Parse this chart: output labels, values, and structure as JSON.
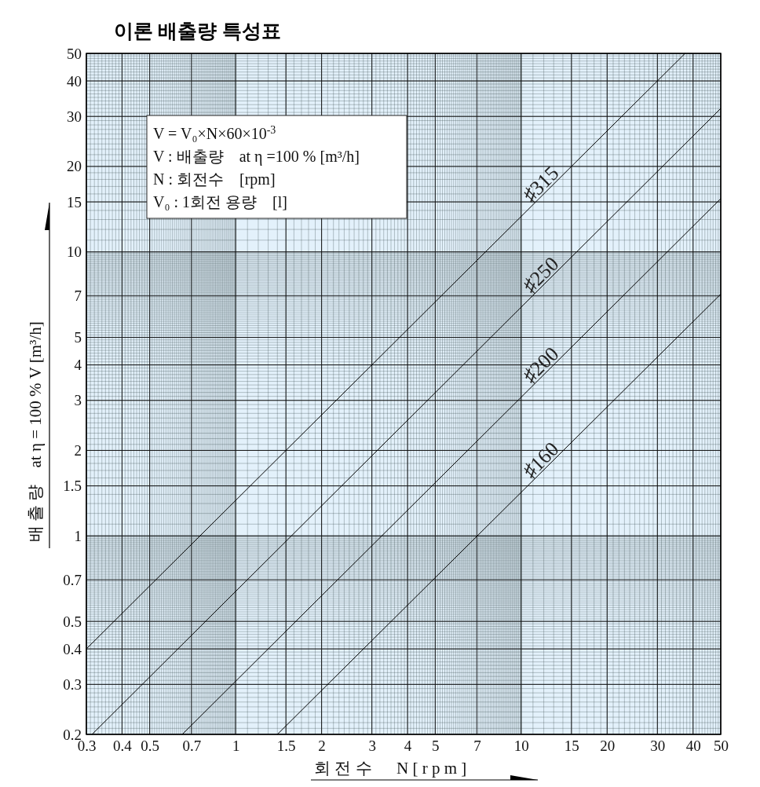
{
  "chart_data": {
    "type": "line",
    "title": "이론 배출량 특성표",
    "xlabel": "회 전 수      N [ r p m ]",
    "ylabel": "배 출 량    at η = 100 % V [m³/h]",
    "annotations": [
      "V = V₀×N×60×10$^{-3}$",
      "V : 배출량    at η =100 % [m³/h]",
      "N : 회전수    [rpm]",
      "V₀ : 1회전 용량    [l]"
    ],
    "log": "xy",
    "grid": true,
    "legend": false,
    "marker": "none",
    "line_style": "solid",
    "xlim": [
      0.3,
      50
    ],
    "ylim": [
      0.2,
      50
    ],
    "xticks": [
      0.3,
      0.4,
      0.5,
      0.7,
      1,
      1.5,
      2,
      3,
      4,
      5,
      7,
      10,
      15,
      20,
      30,
      40,
      50
    ],
    "yticks": [
      0.2,
      0.3,
      0.4,
      0.5,
      0.7,
      1,
      1.5,
      2,
      3,
      4,
      5,
      7,
      10,
      15,
      20,
      30,
      40,
      50
    ],
    "series": [
      {
        "name": "♯315",
        "color": "#000000",
        "x": [
          0.3,
          37.5
        ],
        "values": [
          0.4,
          50
        ]
      },
      {
        "name": "♯250",
        "color": "#000000",
        "x": [
          0.314,
          50
        ],
        "values": [
          0.2,
          32
        ]
      },
      {
        "name": "♯200",
        "color": "#000000",
        "x": [
          0.65,
          50
        ],
        "values": [
          0.2,
          15.4
        ]
      },
      {
        "name": "♯160",
        "color": "#000000",
        "x": [
          1.4,
          50
        ],
        "values": [
          0.2,
          7.1
        ]
      }
    ]
  }
}
